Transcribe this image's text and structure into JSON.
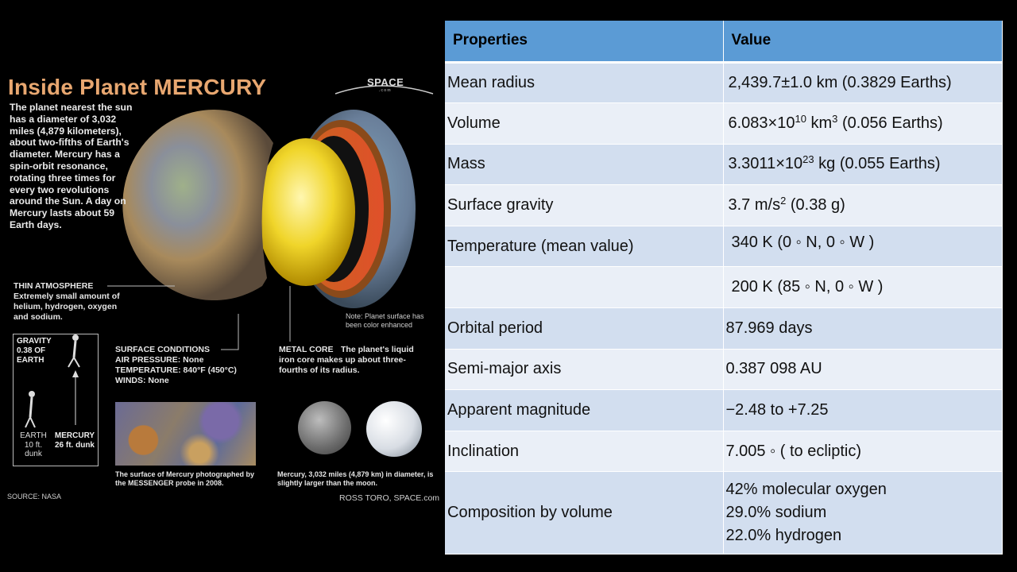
{
  "infographic": {
    "title": "Inside Planet MERCURY",
    "intro": "The planet nearest the sun has a diameter of 3,032 miles (4,879 kilometers), about two-fifths of Earth's diameter. Mercury has a spin-orbit resonance, rotating three times for every two revolutions around the Sun. A day on Mercury lasts about 59 Earth days.",
    "logo": "SPACE",
    "logo_sub": ".com",
    "atmosphere_title": "THIN ATMOSPHERE",
    "atmosphere_text": "Extremely small amount of helium, hydrogen, oxygen and sodium.",
    "surface_note": "Note: Planet surface has been color enhanced",
    "gravity_label": "GRAVITY 0.38 OF EARTH",
    "earth_label": "EARTH 10 ft. dunk",
    "mercury_label": "MERCURY 26 ft. dunk",
    "surface_title": "SURFACE CONDITIONS",
    "surface_lines": [
      "AIR PRESSURE: None",
      "TEMPERATURE: 840°F (450°C)",
      "WINDS: None"
    ],
    "core_title": "METAL CORE",
    "core_text": "The planet's liquid iron core makes up about three-fourths of its radius.",
    "photo_caption": "The surface of Mercury photographed by the MESSENGER probe in 2008.",
    "moon_caption": "Mercury, 3,032 miles (4,879 km) in diameter, is slightly larger than the moon.",
    "source": "SOURCE: NASA",
    "credit": "ROSS TORO, SPACE.com"
  },
  "table": {
    "headers": [
      "Properties",
      "Value"
    ],
    "rows": [
      {
        "property": "Mean radius",
        "value": "2,439.7±1.0 km (0.3829 Earths)"
      },
      {
        "property": "Volume",
        "value_pre": "6.083×10",
        "value_sup": "10",
        "value_mid": " km",
        "value_sup2": "3",
        "value_post": " (0.056 Earths)"
      },
      {
        "property": "Mass",
        "value_pre": "3.3011×10",
        "value_sup": "23",
        "value_post": " kg  (0.055 Earths)"
      },
      {
        "property": "Surface gravity",
        "value_pre": "3.7 m/s",
        "value_sup": "2",
        "value_post": "  (0.38 g)"
      },
      {
        "property": "Temperature (mean value)",
        "value": "340 K  (0 ◦ N, 0 ◦ W )"
      },
      {
        "property": "",
        "value": "200 K  (85 ◦ N, 0 ◦ W )"
      },
      {
        "property": "Orbital period",
        "value": "87.969 days"
      },
      {
        "property": "Semi-major axis",
        "value": "0.387 098 AU"
      },
      {
        "property": "Apparent magnitude",
        "value": "−2.48 to +7.25"
      },
      {
        "property": "Inclination",
        "value": "7.005 ◦  ( to ecliptic)"
      },
      {
        "property": "Composition by volume",
        "values": [
          "42% molecular oxygen",
          "29.0% sodium",
          "22.0% hydrogen"
        ]
      }
    ]
  }
}
